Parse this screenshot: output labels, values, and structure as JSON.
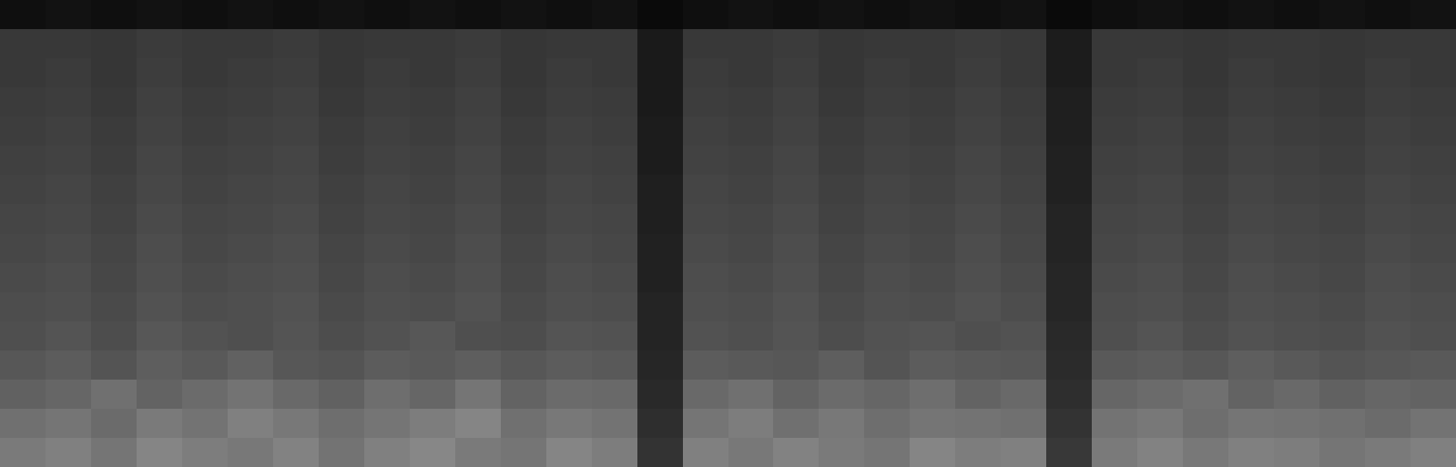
{
  "chart_data": {
    "type": "heatmap",
    "tick_labels": false,
    "grid": false,
    "zlim": [
      0,
      100
    ],
    "cells": [
      [
        48,
        50,
        46,
        52,
        49,
        47,
        51,
        45,
        50,
        53,
        48,
        46,
        52,
        49,
        20,
        50,
        47,
        51,
        48,
        46,
        52,
        49,
        50,
        22,
        48,
        51,
        47,
        50,
        49,
        46,
        48,
        50
      ],
      [
        44,
        46,
        42,
        48,
        45,
        50,
        47,
        43,
        46,
        49,
        52,
        44,
        47,
        45,
        18,
        46,
        49,
        44,
        47,
        43,
        46,
        45,
        44,
        20,
        45,
        47,
        43,
        46,
        45,
        44,
        42,
        45
      ],
      [
        38,
        40,
        44,
        39,
        42,
        45,
        41,
        38,
        43,
        40,
        46,
        39,
        42,
        41,
        16,
        41,
        44,
        39,
        42,
        40,
        43,
        39,
        41,
        18,
        40,
        42,
        44,
        39,
        41,
        38,
        40,
        39
      ],
      [
        34,
        36,
        33,
        37,
        35,
        38,
        34,
        33,
        36,
        35,
        37,
        34,
        36,
        35,
        15,
        36,
        35,
        34,
        37,
        33,
        36,
        35,
        34,
        17,
        35,
        36,
        34,
        37,
        35,
        33,
        34,
        35
      ],
      [
        31,
        33,
        30,
        34,
        32,
        31,
        33,
        30,
        32,
        34,
        31,
        30,
        33,
        32,
        14,
        32,
        31,
        33,
        30,
        32,
        33,
        31,
        32,
        16,
        31,
        33,
        30,
        32,
        31,
        30,
        32,
        31
      ],
      [
        30,
        31,
        29,
        32,
        30,
        31,
        32,
        29,
        31,
        30,
        32,
        29,
        31,
        30,
        14,
        31,
        30,
        32,
        29,
        31,
        30,
        32,
        30,
        15,
        30,
        31,
        29,
        31,
        30,
        29,
        31,
        30
      ],
      [
        29,
        30,
        28,
        31,
        29,
        30,
        31,
        28,
        30,
        29,
        31,
        28,
        30,
        29,
        13,
        30,
        29,
        31,
        28,
        30,
        29,
        31,
        29,
        15,
        29,
        30,
        28,
        30,
        29,
        28,
        30,
        29
      ],
      [
        28,
        29,
        27,
        30,
        28,
        29,
        30,
        27,
        29,
        28,
        30,
        27,
        29,
        28,
        13,
        29,
        28,
        30,
        27,
        29,
        28,
        30,
        28,
        14,
        28,
        29,
        27,
        29,
        28,
        27,
        29,
        28
      ],
      [
        27,
        28,
        26,
        29,
        27,
        28,
        29,
        26,
        28,
        27,
        29,
        26,
        28,
        27,
        12,
        28,
        27,
        29,
        26,
        28,
        27,
        29,
        27,
        14,
        27,
        28,
        26,
        28,
        27,
        26,
        28,
        27
      ],
      [
        26,
        27,
        25,
        28,
        26,
        27,
        28,
        25,
        27,
        26,
        28,
        25,
        27,
        26,
        12,
        27,
        26,
        28,
        25,
        27,
        26,
        28,
        26,
        13,
        26,
        27,
        25,
        27,
        26,
        25,
        27,
        26
      ],
      [
        25,
        26,
        24,
        27,
        25,
        26,
        27,
        24,
        26,
        25,
        27,
        24,
        26,
        25,
        11,
        26,
        25,
        27,
        24,
        26,
        25,
        27,
        25,
        13,
        25,
        26,
        24,
        26,
        25,
        24,
        26,
        25
      ],
      [
        24,
        25,
        23,
        26,
        24,
        25,
        26,
        23,
        25,
        24,
        26,
        23,
        25,
        24,
        11,
        25,
        24,
        26,
        23,
        25,
        24,
        26,
        24,
        12,
        24,
        25,
        23,
        25,
        24,
        23,
        25,
        24
      ],
      [
        23,
        24,
        22,
        25,
        23,
        24,
        25,
        22,
        24,
        23,
        25,
        22,
        24,
        23,
        10,
        24,
        23,
        25,
        22,
        24,
        23,
        25,
        23,
        12,
        23,
        24,
        22,
        24,
        23,
        22,
        24,
        23
      ],
      [
        22,
        23,
        21,
        24,
        22,
        23,
        24,
        21,
        23,
        22,
        24,
        21,
        23,
        22,
        10,
        23,
        22,
        24,
        21,
        23,
        22,
        24,
        22,
        11,
        22,
        23,
        21,
        23,
        22,
        21,
        23,
        22
      ],
      [
        22,
        22,
        21,
        23,
        22,
        22,
        23,
        21,
        22,
        22,
        23,
        21,
        22,
        22,
        10,
        22,
        22,
        23,
        21,
        22,
        22,
        23,
        22,
        11,
        22,
        22,
        21,
        22,
        22,
        21,
        22,
        22
      ],
      [
        6,
        7,
        6,
        7,
        6,
        7,
        6,
        7,
        6,
        7,
        6,
        7,
        6,
        7,
        4,
        6,
        7,
        6,
        7,
        6,
        7,
        6,
        7,
        4,
        6,
        7,
        6,
        7,
        6,
        7,
        6,
        7
      ]
    ]
  }
}
